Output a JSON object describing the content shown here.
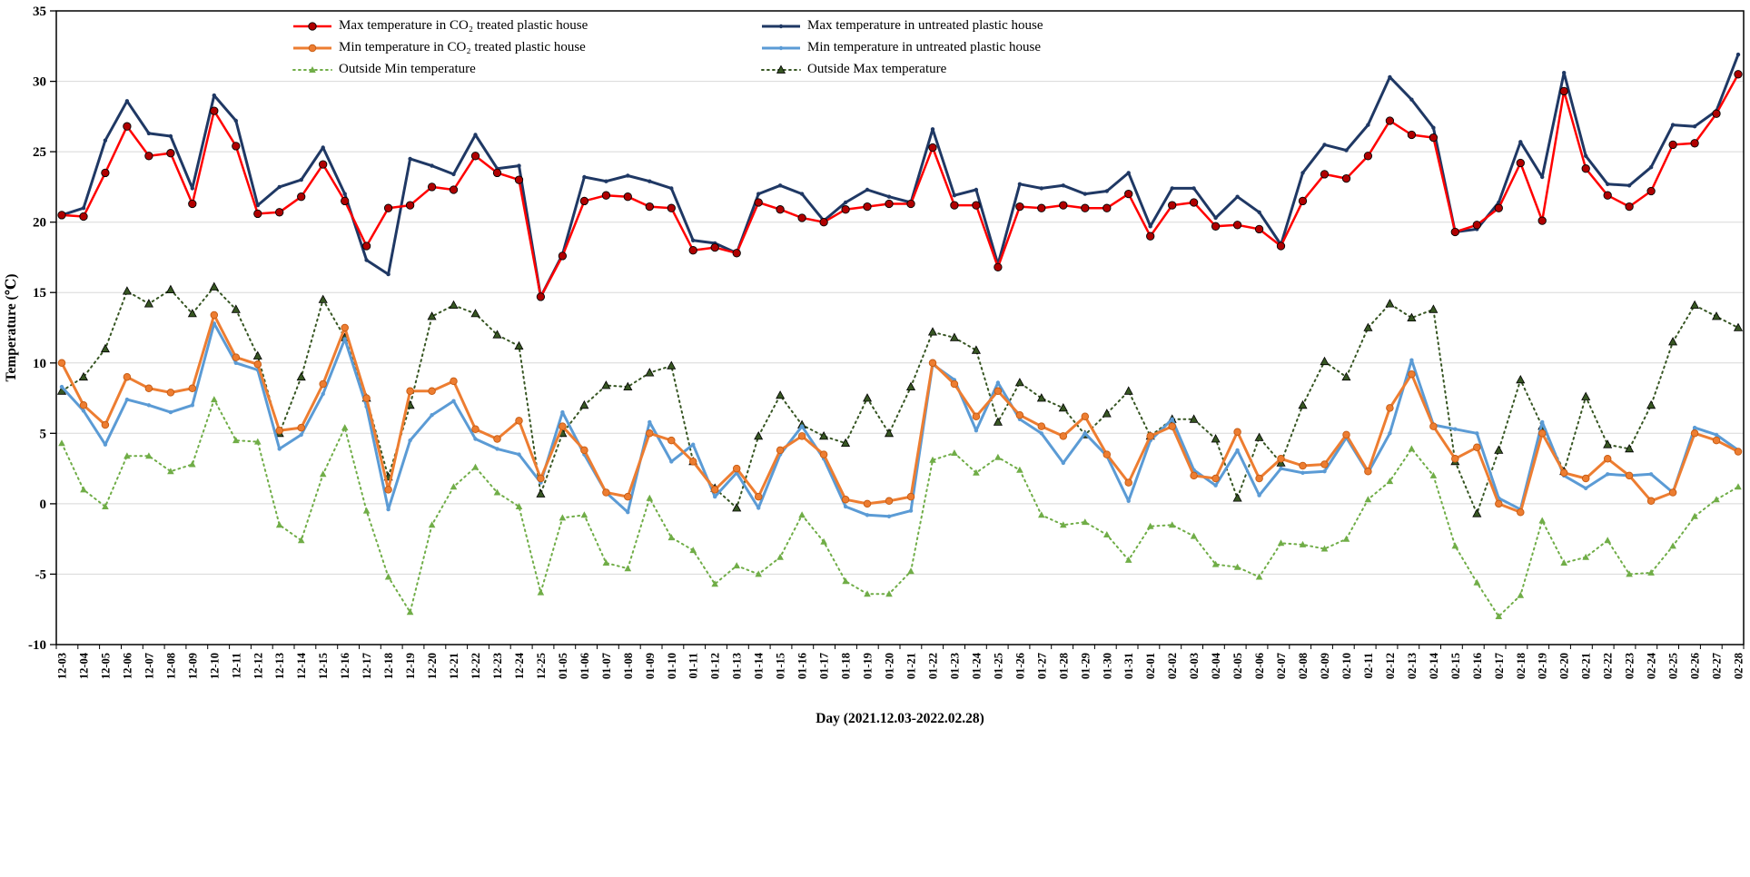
{
  "chart_data": {
    "type": "line",
    "title": "",
    "xlabel": "Day (2021.12.03-2022.02.28)",
    "ylabel": "Temperature (℃)",
    "ylim": [
      -10,
      35
    ],
    "ytick_step": 5,
    "grid": "horizontal",
    "legend_position": "top-inside-two-columns",
    "draw_order": [
      5,
      2,
      4,
      1,
      3,
      0
    ],
    "categories": [
      "12-03",
      "12-04",
      "12-05",
      "12-06",
      "12-07",
      "12-08",
      "12-09",
      "12-10",
      "12-11",
      "12-12",
      "12-13",
      "12-14",
      "12-15",
      "12-16",
      "12-17",
      "12-18",
      "12-19",
      "12-20",
      "12-21",
      "12-22",
      "12-23",
      "12-24",
      "12-25",
      "01-05",
      "01-06",
      "01-07",
      "01-08",
      "01-09",
      "01-10",
      "01-11",
      "01-12",
      "01-13",
      "01-14",
      "01-15",
      "01-16",
      "01-17",
      "01-18",
      "01-19",
      "01-20",
      "01-21",
      "01-22",
      "01-23",
      "01-24",
      "01-25",
      "01-26",
      "01-27",
      "01-28",
      "01-29",
      "01-30",
      "01-31",
      "02-01",
      "02-02",
      "02-03",
      "02-04",
      "02-05",
      "02-06",
      "02-07",
      "02-08",
      "02-09",
      "02-10",
      "02-11",
      "02-12",
      "02-13",
      "02-14",
      "02-15",
      "02-16",
      "02-17",
      "02-18",
      "02-19",
      "02-20",
      "02-21",
      "02-22",
      "02-23",
      "02-24",
      "02-25",
      "02-26",
      "02-27",
      "02-28"
    ],
    "series": [
      {
        "key": "max-co2",
        "name": "Max temperature in CO₂ treated plastic house",
        "color": "#FF0000",
        "width": 2.5,
        "dash": "solid",
        "marker": "circle",
        "marker_size": 4.2,
        "marker_color": "#B00000",
        "marker_edge": "#000000",
        "legend_column": 1,
        "values": [
          20.5,
          20.4,
          23.5,
          26.8,
          24.7,
          24.9,
          21.3,
          27.9,
          25.4,
          20.6,
          20.7,
          21.8,
          24.1,
          21.5,
          18.3,
          21.0,
          21.2,
          22.5,
          22.3,
          24.7,
          23.5,
          23.0,
          14.7,
          17.6,
          21.5,
          21.9,
          21.8,
          21.1,
          21.0,
          18.0,
          18.2,
          17.8,
          21.4,
          20.9,
          20.3,
          20.0,
          20.9,
          21.1,
          21.3,
          21.3,
          25.3,
          21.2,
          21.2,
          16.8,
          21.1,
          21.0,
          21.2,
          21.0,
          21.0,
          22.0,
          19.0,
          21.2,
          21.4,
          19.7,
          19.8,
          19.5,
          18.3,
          21.5,
          23.4,
          23.1,
          24.7,
          27.2,
          26.2,
          26.0,
          19.3,
          19.8,
          21.0,
          24.2,
          20.1,
          29.3,
          23.8,
          21.9,
          21.1,
          22.2,
          25.5,
          25.6,
          27.7,
          30.5
        ]
      },
      {
        "key": "min-co2",
        "name": "Min temperature in CO₂ treated plastic house",
        "color": "#ED7D31",
        "width": 3,
        "dash": "solid",
        "marker": "circle",
        "marker_size": 3.8,
        "marker_color": "#ED7D31",
        "marker_edge": "#C55A11",
        "legend_column": 1,
        "values": [
          10.0,
          7.0,
          5.6,
          9.0,
          8.2,
          7.9,
          8.2,
          13.4,
          10.4,
          9.9,
          5.2,
          5.4,
          8.5,
          12.5,
          7.5,
          1.0,
          8.0,
          8.0,
          8.7,
          5.3,
          4.6,
          5.9,
          1.8,
          5.5,
          3.8,
          0.8,
          0.5,
          5.0,
          4.5,
          3.0,
          1.0,
          2.5,
          0.5,
          3.8,
          4.8,
          3.5,
          0.3,
          0.0,
          0.2,
          0.5,
          10.0,
          8.5,
          6.2,
          8.0,
          6.3,
          5.5,
          4.8,
          6.2,
          3.5,
          1.5,
          4.8,
          5.5,
          2.0,
          1.8,
          5.1,
          1.8,
          3.2,
          2.7,
          2.8,
          4.9,
          2.3,
          6.8,
          9.2,
          5.5,
          3.2,
          4.0,
          0.0,
          -0.6,
          5.0,
          2.2,
          1.8,
          3.2,
          2.0,
          0.2,
          0.8,
          5.0,
          4.5,
          3.7
        ]
      },
      {
        "key": "outside-min",
        "name": "Outside Min temperature",
        "color": "#70AD47",
        "width": 2,
        "dash": "dotted",
        "marker": "triangle",
        "marker_size": 4,
        "marker_color": "#70AD47",
        "marker_edge": "none",
        "legend_column": 1,
        "values": [
          4.3,
          1.0,
          -0.2,
          3.4,
          3.4,
          2.3,
          2.8,
          7.4,
          4.5,
          4.4,
          -1.5,
          -2.6,
          2.1,
          5.4,
          -0.5,
          -5.2,
          -7.7,
          -1.5,
          1.2,
          2.6,
          0.8,
          -0.2,
          -6.3,
          -1.0,
          -0.8,
          -4.2,
          -4.6,
          0.4,
          -2.4,
          -3.3,
          -5.7,
          -4.4,
          -5.0,
          -3.8,
          -0.8,
          -2.7,
          -5.5,
          -6.4,
          -6.4,
          -4.8,
          3.1,
          3.6,
          2.2,
          3.3,
          2.4,
          -0.8,
          -1.5,
          -1.3,
          -2.2,
          -4.0,
          -1.6,
          -1.5,
          -2.3,
          -4.3,
          -4.5,
          -5.2,
          -2.8,
          -2.9,
          -3.2,
          -2.5,
          0.3,
          1.6,
          3.9,
          2.0,
          -3.0,
          -5.6,
          -8.0,
          -6.5,
          -1.2,
          -4.2,
          -3.8,
          -2.6,
          -5.0,
          -4.9,
          -3.0,
          -0.9,
          0.3,
          1.2
        ]
      },
      {
        "key": "max-untreated",
        "name": "Max temperature in untreated plastic house",
        "color": "#1F3864",
        "width": 3,
        "dash": "solid",
        "marker": "dot",
        "marker_size": 2.2,
        "marker_color": "#1F3864",
        "marker_edge": "none",
        "legend_column": 2,
        "values": [
          20.5,
          21.0,
          25.8,
          28.6,
          26.3,
          26.1,
          22.4,
          29.0,
          27.2,
          21.2,
          22.5,
          23.0,
          25.3,
          22.0,
          17.3,
          16.3,
          24.5,
          24.0,
          23.4,
          26.2,
          23.8,
          24.0,
          14.7,
          17.7,
          23.2,
          22.9,
          23.3,
          22.9,
          22.4,
          18.7,
          18.5,
          17.8,
          22.0,
          22.6,
          22.0,
          20.1,
          21.4,
          22.3,
          21.8,
          21.4,
          26.6,
          21.9,
          22.3,
          17.0,
          22.7,
          22.4,
          22.6,
          22.0,
          22.2,
          23.5,
          19.7,
          22.4,
          22.4,
          20.3,
          21.8,
          20.7,
          18.4,
          23.5,
          25.5,
          25.1,
          26.9,
          30.3,
          28.7,
          26.7,
          19.3,
          19.5,
          21.4,
          25.7,
          23.2,
          30.6,
          24.7,
          22.7,
          22.6,
          23.9,
          26.9,
          26.8,
          27.9,
          31.9
        ]
      },
      {
        "key": "min-untreated",
        "name": "Min temperature in untreated plastic house",
        "color": "#5B9BD5",
        "width": 3,
        "dash": "solid",
        "marker": "dot",
        "marker_size": 2.2,
        "marker_color": "#5B9BD5",
        "marker_edge": "none",
        "legend_column": 2,
        "values": [
          8.3,
          6.6,
          4.2,
          7.4,
          7.0,
          6.5,
          7.0,
          12.8,
          10.0,
          9.5,
          3.9,
          4.9,
          7.8,
          11.7,
          6.9,
          -0.4,
          4.5,
          6.3,
          7.3,
          4.6,
          3.9,
          3.5,
          1.5,
          6.5,
          3.5,
          0.8,
          -0.6,
          5.8,
          3.0,
          4.2,
          0.5,
          2.2,
          -0.3,
          3.5,
          5.5,
          3.2,
          -0.2,
          -0.8,
          -0.9,
          -0.5,
          9.9,
          8.8,
          5.2,
          8.6,
          6.0,
          5.0,
          2.9,
          5.0,
          3.4,
          0.2,
          4.5,
          6.0,
          2.4,
          1.3,
          3.8,
          0.6,
          2.5,
          2.2,
          2.3,
          4.7,
          2.2,
          5.0,
          10.2,
          5.6,
          5.3,
          5.0,
          0.4,
          -0.4,
          5.8,
          2.0,
          1.1,
          2.1,
          2.0,
          2.1,
          0.8,
          5.4,
          4.9,
          3.8
        ]
      },
      {
        "key": "outside-max",
        "name": "Outside Max temperature",
        "color": "#375623",
        "width": 2,
        "dash": "dotted",
        "marker": "triangle",
        "marker_size": 4.6,
        "marker_color": "#375623",
        "marker_edge": "#000000",
        "legend_column": 2,
        "values": [
          8.0,
          9.0,
          11.0,
          15.1,
          14.2,
          15.2,
          13.5,
          15.4,
          13.8,
          10.5,
          5.0,
          9.0,
          14.5,
          11.8,
          7.5,
          1.9,
          7.0,
          13.3,
          14.1,
          13.5,
          12.0,
          11.2,
          0.7,
          5.0,
          7.0,
          8.4,
          8.3,
          9.3,
          9.8,
          3.0,
          1.1,
          -0.3,
          4.8,
          7.7,
          5.6,
          4.8,
          4.3,
          7.5,
          5.0,
          8.3,
          12.2,
          11.8,
          10.9,
          5.8,
          8.6,
          7.5,
          6.8,
          4.9,
          6.4,
          8.0,
          4.8,
          6.0,
          6.0,
          4.6,
          0.4,
          4.7,
          2.9,
          7.0,
          10.1,
          9.0,
          12.5,
          14.2,
          13.2,
          13.8,
          3.0,
          -0.7,
          3.8,
          8.8,
          5.5,
          2.3,
          7.6,
          4.2,
          3.9,
          7.0,
          11.5,
          14.1,
          13.3,
          12.5
        ]
      }
    ]
  }
}
